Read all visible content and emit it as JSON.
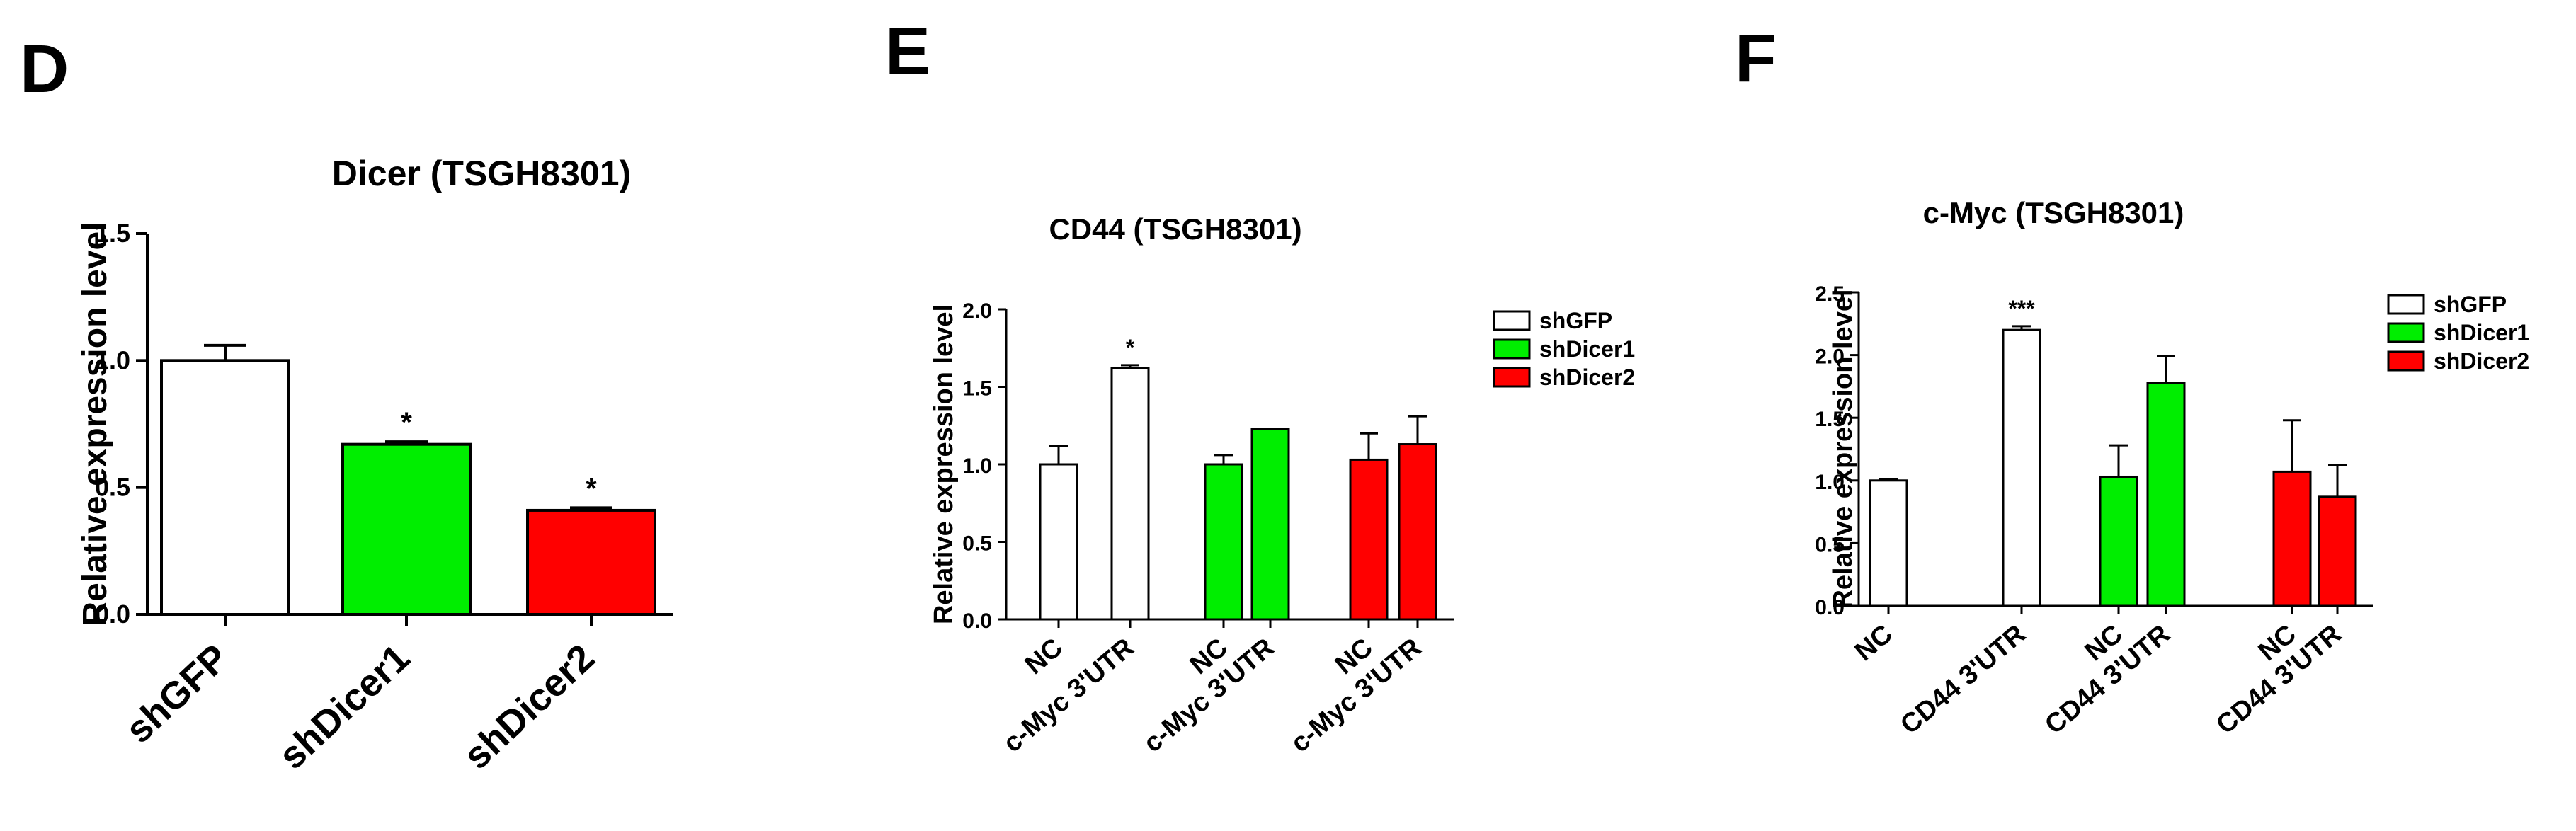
{
  "panels": {
    "d": {
      "letter": "D"
    },
    "e": {
      "letter": "E"
    },
    "f": {
      "letter": "F"
    }
  },
  "legend": {
    "entries": [
      {
        "label": "shGFP",
        "color": "#ffffff"
      },
      {
        "label": "shDicer1",
        "color": "#00ee00"
      },
      {
        "label": "shDicer2",
        "color": "#ff0000"
      }
    ]
  },
  "chart_data": [
    {
      "type": "bar",
      "title": "Dicer (TSGH8301)",
      "xlabel": "",
      "ylabel": "Relative expression level",
      "ylim": [
        0,
        1.5
      ],
      "yticks": [
        "0.0",
        "0.5",
        "1.0",
        "1.5"
      ],
      "categories": [
        "shGFP",
        "shDicer1",
        "shDicer2"
      ],
      "values": [
        1.0,
        0.67,
        0.41
      ],
      "errors": [
        0.06,
        0.01,
        0.01
      ],
      "colors": [
        "#ffffff",
        "#00ee00",
        "#ff0000"
      ],
      "significance": [
        "",
        "*",
        "*"
      ],
      "grid": false
    },
    {
      "type": "bar",
      "title": "CD44 (TSGH8301)",
      "xlabel": "",
      "ylabel": "Relative expression level",
      "ylim": [
        0,
        2.0
      ],
      "yticks": [
        "0.0",
        "0.5",
        "1.0",
        "1.5",
        "2.0"
      ],
      "categories": [
        "NC",
        "c-Myc 3'UTR",
        "NC",
        "c-Myc 3'UTR",
        "NC",
        "c-Myc 3'UTR"
      ],
      "groups": [
        "shGFP",
        "shGFP",
        "shDicer1",
        "shDicer1",
        "shDicer2",
        "shDicer2"
      ],
      "values": [
        1.0,
        1.62,
        1.0,
        1.23,
        1.03,
        1.13
      ],
      "errors": [
        0.12,
        0.02,
        0.06,
        0.0,
        0.17,
        0.18
      ],
      "colors": [
        "#ffffff",
        "#ffffff",
        "#00ee00",
        "#00ee00",
        "#ff0000",
        "#ff0000"
      ],
      "significance": [
        "",
        "*",
        "",
        "",
        "",
        ""
      ],
      "legend": "right",
      "grid": false
    },
    {
      "type": "bar",
      "title": "c-Myc (TSGH8301)",
      "xlabel": "",
      "ylabel": "Relative expression level",
      "ylim": [
        0,
        2.5
      ],
      "yticks": [
        "0.0",
        "0.5",
        "1.0",
        "1.5",
        "2.0",
        "2.5"
      ],
      "categories": [
        "NC",
        "CD44 3'UTR",
        "NC",
        "CD44 3'UTR",
        "NC",
        "CD44 3'UTR"
      ],
      "groups": [
        "shGFP",
        "shGFP",
        "shDicer1",
        "shDicer1",
        "shDicer2",
        "shDicer2"
      ],
      "values": [
        1.0,
        2.2,
        1.03,
        1.78,
        1.07,
        0.87
      ],
      "errors": [
        0.01,
        0.03,
        0.25,
        0.21,
        0.41,
        0.25
      ],
      "colors": [
        "#ffffff",
        "#ffffff",
        "#00ee00",
        "#00ee00",
        "#ff0000",
        "#ff0000"
      ],
      "significance": [
        "",
        "***",
        "",
        "",
        "",
        ""
      ],
      "legend": "right",
      "grid": false
    }
  ]
}
